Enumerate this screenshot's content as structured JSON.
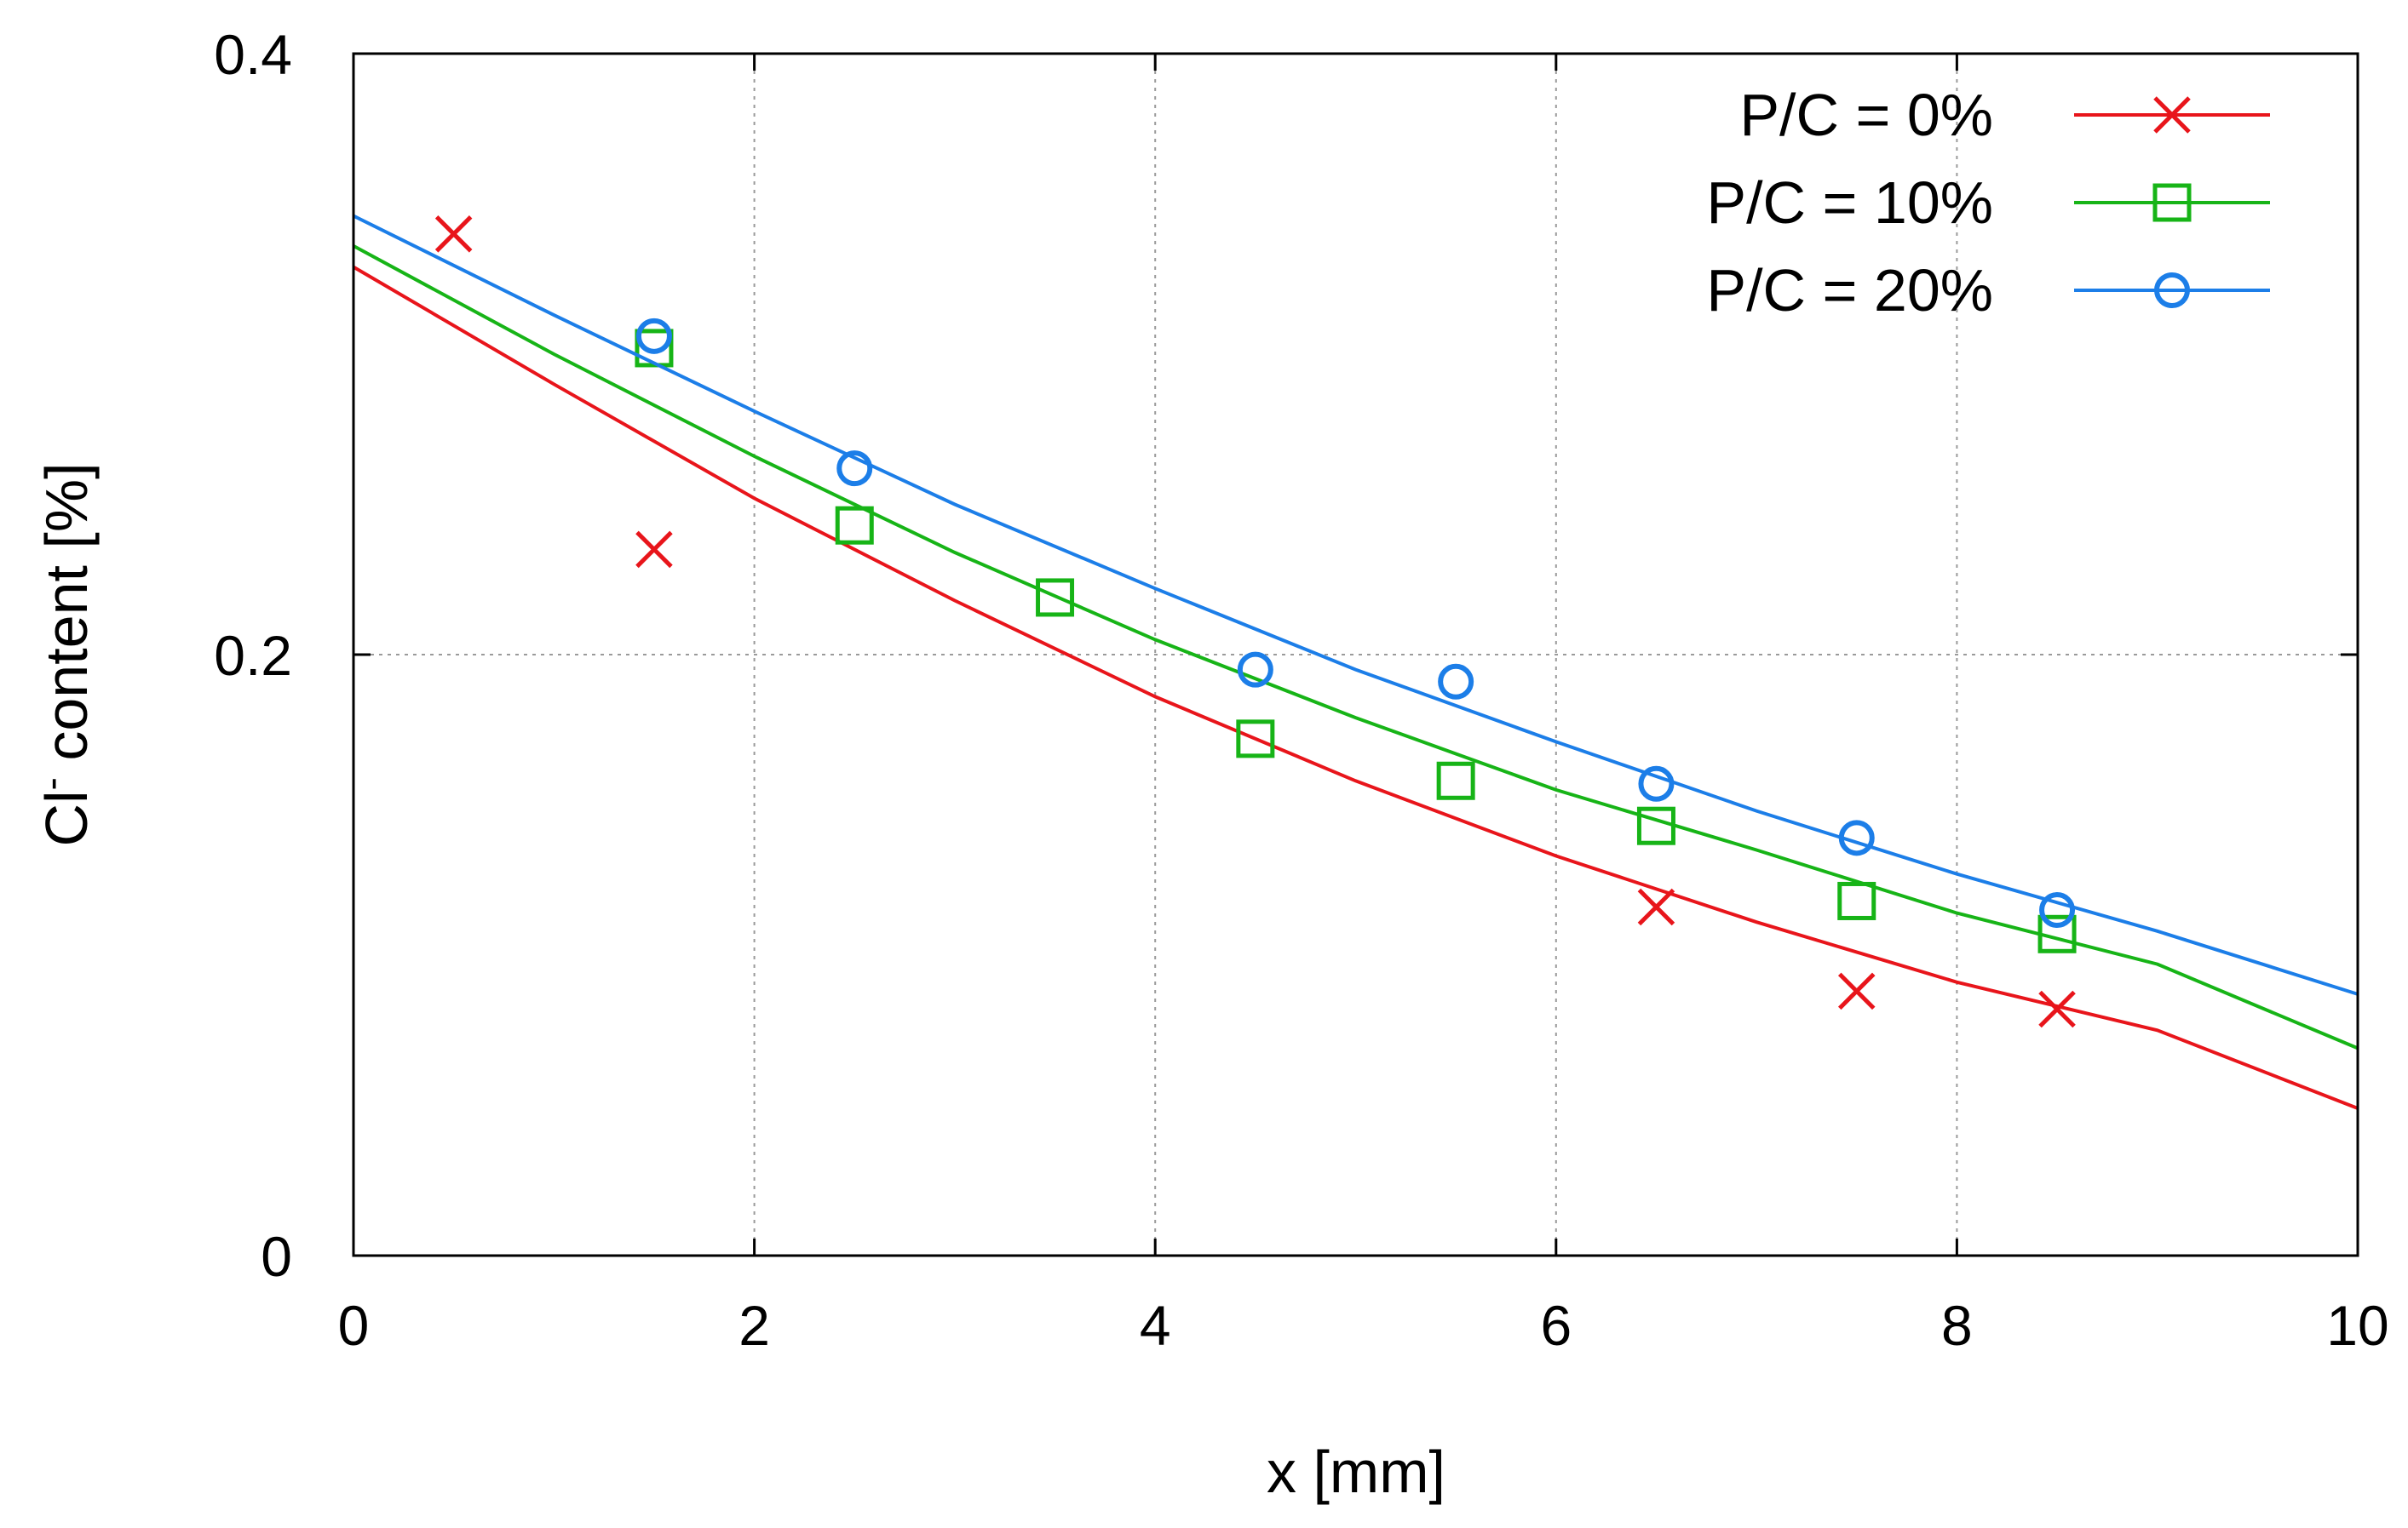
{
  "chart_data": {
    "type": "line",
    "title": "",
    "xlabel": "x [mm]",
    "ylabel_main": "Cl",
    "ylabel_sup": "-",
    "ylabel_rest": " content [%]",
    "xlim": [
      0,
      10
    ],
    "ylim": [
      0,
      0.4
    ],
    "xticks": [
      0,
      2,
      4,
      6,
      8,
      10
    ],
    "xtick_labels": [
      "0",
      "2",
      "4",
      "6",
      "8",
      "10"
    ],
    "yticks": [
      0,
      0.2,
      0.4
    ],
    "ytick_labels": [
      "0",
      "0.2",
      "0.4"
    ],
    "grid": true,
    "legend_position": "top-right",
    "series": [
      {
        "name": "P/C = 0%",
        "color": "#e8151b",
        "marker": "cross",
        "points": {
          "x": [
            0.5,
            1.5,
            6.5,
            7.5,
            8.5
          ],
          "y": [
            0.34,
            0.235,
            0.116,
            0.088,
            0.082
          ]
        },
        "fit": {
          "x": [
            0,
            1,
            2,
            3,
            4,
            5,
            6,
            7,
            8,
            9,
            10
          ],
          "y": [
            0.329,
            0.29,
            0.252,
            0.218,
            0.186,
            0.158,
            0.133,
            0.111,
            0.091,
            0.075,
            0.049
          ]
        }
      },
      {
        "name": "P/C = 10%",
        "color": "#17b417",
        "marker": "square",
        "points": {
          "x": [
            1.5,
            2.5,
            3.5,
            4.5,
            5.5,
            6.5,
            7.5,
            8.5
          ],
          "y": [
            0.302,
            0.243,
            0.219,
            0.172,
            0.158,
            0.143,
            0.118,
            0.107
          ]
        },
        "fit": {
          "x": [
            0,
            1,
            2,
            3,
            4,
            5,
            6,
            7,
            8,
            9,
            10
          ],
          "y": [
            0.336,
            0.3,
            0.266,
            0.234,
            0.205,
            0.179,
            0.155,
            0.135,
            0.114,
            0.097,
            0.069
          ]
        }
      },
      {
        "name": "P/C = 20%",
        "color": "#1c7ee8",
        "marker": "circle",
        "points": {
          "x": [
            1.5,
            2.5,
            4.5,
            5.5,
            6.5,
            7.5,
            8.5
          ],
          "y": [
            0.306,
            0.262,
            0.195,
            0.191,
            0.157,
            0.139,
            0.115
          ]
        },
        "fit": {
          "x": [
            0,
            1,
            2,
            3,
            4,
            5,
            6,
            7,
            8,
            9,
            10
          ],
          "y": [
            0.346,
            0.313,
            0.281,
            0.25,
            0.222,
            0.195,
            0.171,
            0.148,
            0.127,
            0.108,
            0.087
          ]
        }
      }
    ]
  }
}
